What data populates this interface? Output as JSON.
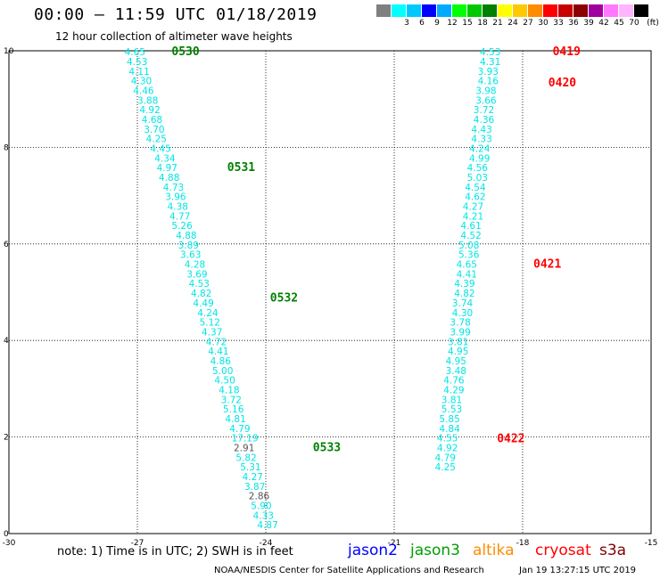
{
  "header": {
    "title": "00:00 – 11:59 UTC 01/18/2019",
    "subtitle": "12 hour collection of altimeter wave heights"
  },
  "legend": {
    "unit": "(ft)",
    "swatches": [
      {
        "color": "#808080",
        "label": ""
      },
      {
        "color": "#00ffff",
        "label": "3"
      },
      {
        "color": "#00c8ff",
        "label": "6"
      },
      {
        "color": "#0000ff",
        "label": "9"
      },
      {
        "color": "#00aaff",
        "label": "12"
      },
      {
        "color": "#00ff00",
        "label": "15"
      },
      {
        "color": "#00c800",
        "label": "18"
      },
      {
        "color": "#008000",
        "label": "21"
      },
      {
        "color": "#ffff00",
        "label": "24"
      },
      {
        "color": "#ffc800",
        "label": "27"
      },
      {
        "color": "#ff8c00",
        "label": "30"
      },
      {
        "color": "#ff0000",
        "label": "33"
      },
      {
        "color": "#c80000",
        "label": "36"
      },
      {
        "color": "#8c0000",
        "label": "39"
      },
      {
        "color": "#a000a0",
        "label": "42"
      },
      {
        "color": "#ff78ff",
        "label": "45"
      },
      {
        "color": "#ffb4ff",
        "label": "70"
      },
      {
        "color": "#000000",
        "label": ""
      }
    ]
  },
  "note": "note: 1) Time is in UTC; 2) SWH is in feet",
  "satellites": [
    {
      "name": "jason2",
      "color": "#0000ff"
    },
    {
      "name": "jason3",
      "color": "#00a000"
    },
    {
      "name": "altika",
      "color": "#ff8c00"
    },
    {
      "name": "cryosat",
      "color": "#ff0000"
    },
    {
      "name": "s3a",
      "color": "#800000"
    }
  ],
  "footer": {
    "credit": "NOAA/NESDIS Center for Satellite Applications and Research",
    "timestamp": "Jan 19 13:27:15 UTC 2019"
  },
  "chart_data": {
    "type": "scatter",
    "xlim": [
      -30,
      -15
    ],
    "ylim": [
      0,
      10
    ],
    "x_ticks": [
      -30,
      -27,
      -24,
      -21,
      -18,
      -15
    ],
    "y_ticks": [
      0,
      2,
      4,
      6,
      8,
      10
    ],
    "grid": true,
    "value_color": "#00e5e5",
    "series": [
      {
        "name": "",
        "color": "#008000",
        "time_labels": [
          {
            "text": "0530",
            "x": -26.2,
            "y": 10.0
          },
          {
            "text": "0531",
            "x": -24.9,
            "y": 7.6
          },
          {
            "text": "0532",
            "x": -23.9,
            "y": 4.9
          },
          {
            "text": "0533",
            "x": -22.9,
            "y": 1.8
          }
        ],
        "points": [
          {
            "x": -27.3,
            "y": 9.98,
            "v": "4.65"
          },
          {
            "x": -27.25,
            "y": 9.78,
            "v": "4.53"
          },
          {
            "x": -27.2,
            "y": 9.58,
            "v": "4.11"
          },
          {
            "x": -27.15,
            "y": 9.38,
            "v": "4.30"
          },
          {
            "x": -27.1,
            "y": 9.18,
            "v": "4.46"
          },
          {
            "x": -27.0,
            "y": 8.98,
            "v": "3.88"
          },
          {
            "x": -26.95,
            "y": 8.78,
            "v": "4.92"
          },
          {
            "x": -26.9,
            "y": 8.58,
            "v": "4.68"
          },
          {
            "x": -26.85,
            "y": 8.38,
            "v": "3.70"
          },
          {
            "x": -26.8,
            "y": 8.18,
            "v": "4.25"
          },
          {
            "x": -26.7,
            "y": 7.98,
            "v": "4.45"
          },
          {
            "x": -26.6,
            "y": 7.78,
            "v": "4.34"
          },
          {
            "x": -26.55,
            "y": 7.58,
            "v": "4.97"
          },
          {
            "x": -26.5,
            "y": 7.38,
            "v": "4.88"
          },
          {
            "x": -26.4,
            "y": 7.18,
            "v": "4.73"
          },
          {
            "x": -26.35,
            "y": 6.98,
            "v": "3.96"
          },
          {
            "x": -26.3,
            "y": 6.78,
            "v": "4.38"
          },
          {
            "x": -26.25,
            "y": 6.58,
            "v": "4.77"
          },
          {
            "x": -26.2,
            "y": 6.38,
            "v": "5.26"
          },
          {
            "x": -26.1,
            "y": 6.18,
            "v": "4.88"
          },
          {
            "x": -26.05,
            "y": 5.98,
            "v": "3.89"
          },
          {
            "x": -26.0,
            "y": 5.78,
            "v": "3.63"
          },
          {
            "x": -25.9,
            "y": 5.58,
            "v": "4.28"
          },
          {
            "x": -25.85,
            "y": 5.38,
            "v": "3.69"
          },
          {
            "x": -25.8,
            "y": 5.18,
            "v": "4.53"
          },
          {
            "x": -25.75,
            "y": 4.98,
            "v": "4.82"
          },
          {
            "x": -25.7,
            "y": 4.78,
            "v": "4.49"
          },
          {
            "x": -25.6,
            "y": 4.58,
            "v": "4.24"
          },
          {
            "x": -25.55,
            "y": 4.38,
            "v": "5.12"
          },
          {
            "x": -25.5,
            "y": 4.18,
            "v": "4.37"
          },
          {
            "x": -25.4,
            "y": 3.98,
            "v": "4.72"
          },
          {
            "x": -25.35,
            "y": 3.78,
            "v": "4.41"
          },
          {
            "x": -25.3,
            "y": 3.58,
            "v": "4.86"
          },
          {
            "x": -25.25,
            "y": 3.38,
            "v": "5.00"
          },
          {
            "x": -25.2,
            "y": 3.18,
            "v": "4.50"
          },
          {
            "x": -25.1,
            "y": 2.98,
            "v": "4.18"
          },
          {
            "x": -25.05,
            "y": 2.78,
            "v": "3.72"
          },
          {
            "x": -25.0,
            "y": 2.58,
            "v": "5.16"
          },
          {
            "x": -24.95,
            "y": 2.38,
            "v": "4.81"
          },
          {
            "x": -24.85,
            "y": 2.18,
            "v": "4.79"
          },
          {
            "x": -24.8,
            "y": 1.98,
            "v": "17.19"
          },
          {
            "x": -24.75,
            "y": 1.78,
            "v": "2.91",
            "c": "#555555"
          },
          {
            "x": -24.7,
            "y": 1.58,
            "v": "5.82"
          },
          {
            "x": -24.6,
            "y": 1.38,
            "v": "5.31"
          },
          {
            "x": -24.55,
            "y": 1.18,
            "v": "4.27"
          },
          {
            "x": -24.5,
            "y": 0.98,
            "v": "3.87"
          },
          {
            "x": -24.4,
            "y": 0.78,
            "v": "2.86",
            "c": "#555555"
          },
          {
            "x": -24.35,
            "y": 0.58,
            "v": "5.90"
          },
          {
            "x": -24.3,
            "y": 0.38,
            "v": "4.33"
          },
          {
            "x": -24.2,
            "y": 0.18,
            "v": "4.87"
          }
        ]
      },
      {
        "name": "",
        "color": "#ff0000",
        "time_labels": [
          {
            "text": "0419",
            "x": -17.3,
            "y": 10.0
          },
          {
            "text": "0420",
            "x": -17.4,
            "y": 9.35
          },
          {
            "text": "0421",
            "x": -17.75,
            "y": 5.6
          },
          {
            "text": "0422",
            "x": -18.6,
            "y": 1.98
          }
        ],
        "points": [
          {
            "x": -19.0,
            "y": 9.98,
            "v": "4.53"
          },
          {
            "x": -19.0,
            "y": 9.78,
            "v": "4.31"
          },
          {
            "x": -19.05,
            "y": 9.58,
            "v": "3.93"
          },
          {
            "x": -19.05,
            "y": 9.38,
            "v": "4.16"
          },
          {
            "x": -19.1,
            "y": 9.18,
            "v": "3.98"
          },
          {
            "x": -19.1,
            "y": 8.98,
            "v": "3.66"
          },
          {
            "x": -19.15,
            "y": 8.78,
            "v": "3.72"
          },
          {
            "x": -19.15,
            "y": 8.58,
            "v": "4.36"
          },
          {
            "x": -19.2,
            "y": 8.38,
            "v": "4.43"
          },
          {
            "x": -19.2,
            "y": 8.18,
            "v": "4.33"
          },
          {
            "x": -19.25,
            "y": 7.98,
            "v": "4.24"
          },
          {
            "x": -19.25,
            "y": 7.78,
            "v": "4.99"
          },
          {
            "x": -19.3,
            "y": 7.58,
            "v": "4.56"
          },
          {
            "x": -19.3,
            "y": 7.38,
            "v": "5.03"
          },
          {
            "x": -19.35,
            "y": 7.18,
            "v": "4.54"
          },
          {
            "x": -19.35,
            "y": 6.98,
            "v": "4.62"
          },
          {
            "x": -19.4,
            "y": 6.78,
            "v": "4.27"
          },
          {
            "x": -19.4,
            "y": 6.58,
            "v": "4.21"
          },
          {
            "x": -19.45,
            "y": 6.38,
            "v": "4.61"
          },
          {
            "x": -19.45,
            "y": 6.18,
            "v": "4.52"
          },
          {
            "x": -19.5,
            "y": 5.98,
            "v": "5.08"
          },
          {
            "x": -19.5,
            "y": 5.78,
            "v": "5.36"
          },
          {
            "x": -19.55,
            "y": 5.58,
            "v": "4.65"
          },
          {
            "x": -19.55,
            "y": 5.38,
            "v": "4.41"
          },
          {
            "x": -19.6,
            "y": 5.18,
            "v": "4.39"
          },
          {
            "x": -19.6,
            "y": 4.98,
            "v": "4.82"
          },
          {
            "x": -19.65,
            "y": 4.78,
            "v": "3.74"
          },
          {
            "x": -19.65,
            "y": 4.58,
            "v": "4.30"
          },
          {
            "x": -19.7,
            "y": 4.38,
            "v": "3.78"
          },
          {
            "x": -19.7,
            "y": 4.18,
            "v": "3.99"
          },
          {
            "x": -19.75,
            "y": 3.98,
            "v": "3.81"
          },
          {
            "x": -19.75,
            "y": 3.78,
            "v": "4.95"
          },
          {
            "x": -19.8,
            "y": 3.58,
            "v": "4.95"
          },
          {
            "x": -19.8,
            "y": 3.38,
            "v": "3.48"
          },
          {
            "x": -19.85,
            "y": 3.18,
            "v": "4.76"
          },
          {
            "x": -19.85,
            "y": 2.98,
            "v": "4.29"
          },
          {
            "x": -19.9,
            "y": 2.78,
            "v": "3.81"
          },
          {
            "x": -19.9,
            "y": 2.58,
            "v": "5.53"
          },
          {
            "x": -19.95,
            "y": 2.38,
            "v": "5.85"
          },
          {
            "x": -19.95,
            "y": 2.18,
            "v": "4.84"
          },
          {
            "x": -20.0,
            "y": 1.98,
            "v": "4.55"
          },
          {
            "x": -20.0,
            "y": 1.78,
            "v": "4.92"
          },
          {
            "x": -20.05,
            "y": 1.58,
            "v": "4.79"
          },
          {
            "x": -20.05,
            "y": 1.38,
            "v": "4.25"
          }
        ]
      }
    ]
  }
}
